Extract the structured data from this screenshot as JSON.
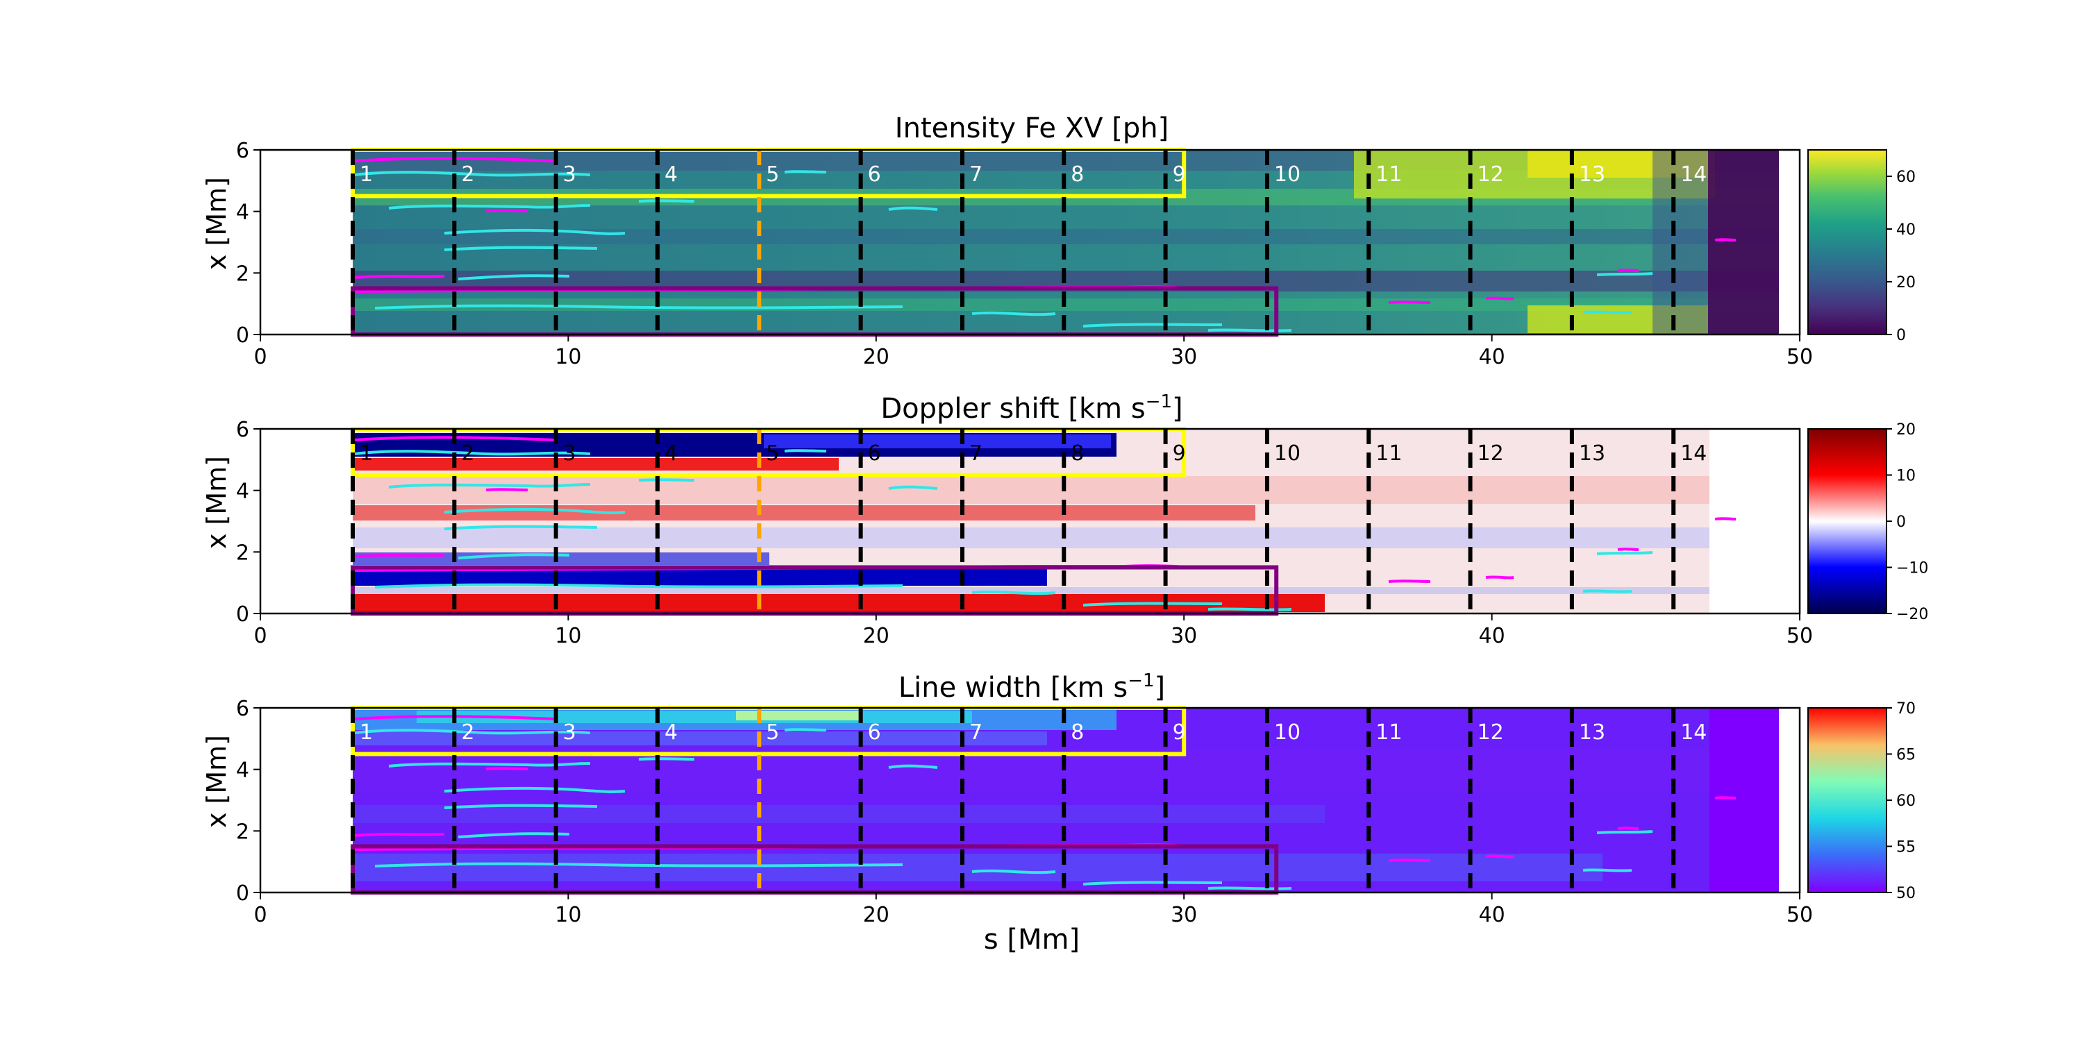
{
  "figure": {
    "xlabel": "s [Mm]"
  },
  "chart_data": [
    {
      "type": "heatmap",
      "title": "Intensity Fe XV [ph]",
      "ylabel": "x [Mm]",
      "xlim": [
        0,
        50
      ],
      "ylim": [
        0,
        6
      ],
      "xticks": [
        "0",
        "10",
        "20",
        "30",
        "40",
        "50"
      ],
      "yticks": [
        "0",
        "2",
        "4",
        "6"
      ],
      "colorbar": {
        "ticks": [
          "0",
          "20",
          "40",
          "60"
        ],
        "min": 0,
        "max": 70,
        "colormap": "viridis"
      },
      "slit_label_color": "#ffffff",
      "data_extent_s": [
        3.0,
        49.4
      ]
    },
    {
      "type": "heatmap",
      "title_main": "Doppler shift [km s",
      "title_sup": "−1",
      "title_end": "]",
      "ylabel": "x [Mm]",
      "xlim": [
        0,
        50
      ],
      "ylim": [
        0,
        6
      ],
      "xticks": [
        "0",
        "10",
        "20",
        "30",
        "40",
        "50"
      ],
      "yticks": [
        "0",
        "2",
        "4",
        "6"
      ],
      "colorbar": {
        "ticks": [
          "−20",
          "−10",
          "0",
          "10",
          "20"
        ],
        "min": -20,
        "max": 20,
        "colormap": "seismic"
      },
      "slit_label_color": "#000000",
      "data_extent_s": [
        3.0,
        49.4
      ]
    },
    {
      "type": "heatmap",
      "title_main": "Line width [km s",
      "title_sup": "−1",
      "title_end": "]",
      "ylabel": "x [Mm]",
      "xlim": [
        0,
        50
      ],
      "ylim": [
        0,
        6
      ],
      "xticks": [
        "0",
        "10",
        "20",
        "30",
        "40",
        "50"
      ],
      "yticks": [
        "0",
        "2",
        "4",
        "6"
      ],
      "colorbar": {
        "ticks": [
          "50",
          "55",
          "60",
          "65",
          "70"
        ],
        "min": 50,
        "max": 70,
        "colormap": "rainbow"
      },
      "slit_label_color": "#ffffff",
      "data_extent_s": [
        3.0,
        49.4
      ]
    }
  ],
  "slits": {
    "labels": [
      "1",
      "2",
      "3",
      "4",
      "5",
      "6",
      "7",
      "8",
      "9",
      "10",
      "11",
      "12",
      "13",
      "14"
    ],
    "positions_s": [
      3.0,
      6.3,
      9.6,
      12.9,
      16.2,
      19.5,
      22.8,
      26.1,
      29.4,
      32.7,
      36.0,
      39.3,
      42.6,
      45.9
    ],
    "highlight_index": 4,
    "color": "#000000",
    "highlight_color": "#ffa500"
  },
  "regions": [
    {
      "name": "upper",
      "color": "#ffff00",
      "s": [
        3.0,
        30.0
      ],
      "x": [
        4.5,
        6.0
      ]
    },
    {
      "name": "lower",
      "color": "#800080",
      "s": [
        3.0,
        33.0
      ],
      "x": [
        0.0,
        1.5
      ]
    }
  ],
  "contours": {
    "cyan": "#33e6e6",
    "magenta": "#ff00ff"
  }
}
